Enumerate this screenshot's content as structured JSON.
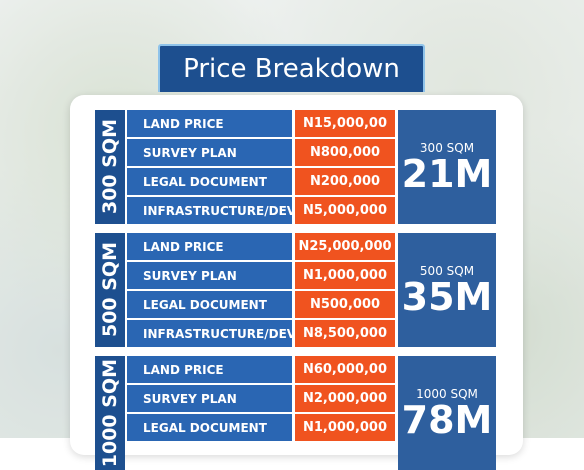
{
  "title": "Price Breakdown",
  "sections": [
    {
      "label": "300 SQM",
      "rows": [
        {
          "item": "LAND PRICE",
          "price": "N15,000,00"
        },
        {
          "item": "SURVEY PLAN",
          "price": "N800,000"
        },
        {
          "item": "LEGAL DOCUMENT",
          "price": "N200,000"
        },
        {
          "item": "INFRASTRUCTURE/DEV",
          "price": "N5,000,000"
        }
      ],
      "total_label": "300 SQM",
      "total": "21M"
    },
    {
      "label": "500 SQM",
      "rows": [
        {
          "item": "LAND PRICE",
          "price": "N25,000,000"
        },
        {
          "item": "SURVEY PLAN",
          "price": "N1,000,000"
        },
        {
          "item": "LEGAL DOCUMENT",
          "price": "N500,000"
        },
        {
          "item": "INFRASTRUCTURE/DEV",
          "price": "N8,500,000"
        }
      ],
      "total_label": "500 SQM",
      "total": "35M"
    },
    {
      "label": "1000 SQM",
      "rows": [
        {
          "item": "LAND PRICE",
          "price": "N60,000,00"
        },
        {
          "item": "SURVEY PLAN",
          "price": "N2,000,000"
        },
        {
          "item": "LEGAL DOCUMENT",
          "price": "N1,000,000"
        }
      ],
      "total_label": "1000 SQM",
      "total": "78M"
    }
  ]
}
